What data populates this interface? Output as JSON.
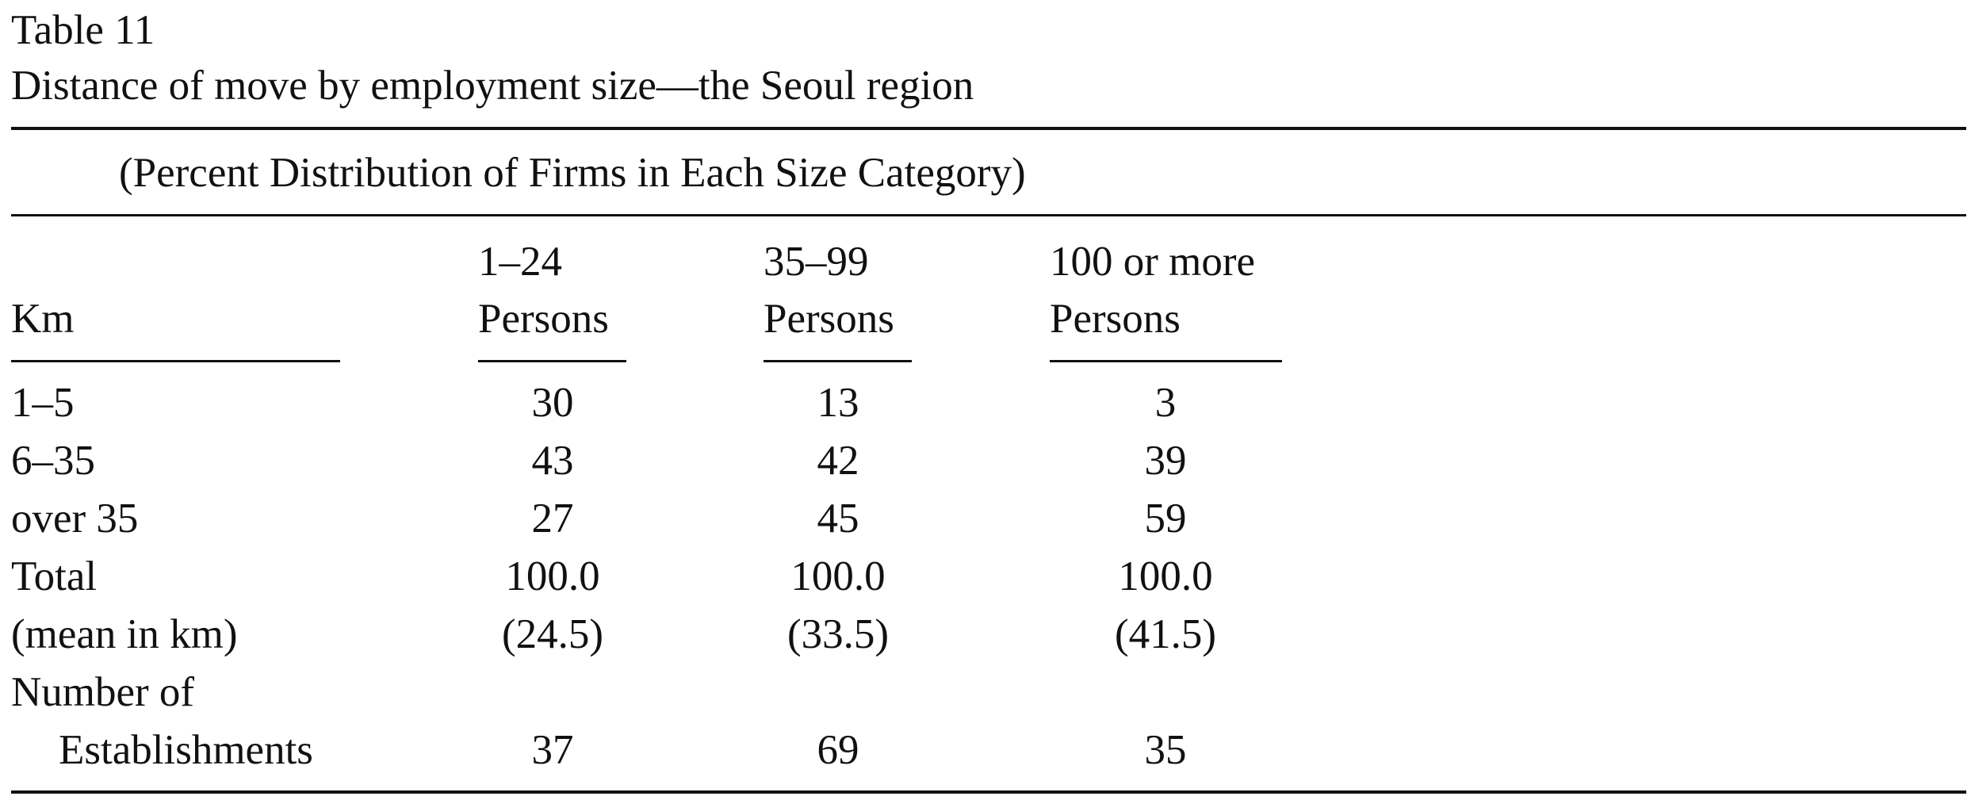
{
  "table": {
    "number": "Table 11",
    "caption": "Distance of move by employment size—the Seoul region",
    "subtitle": "(Percent Distribution of Firms in Each Size Category)",
    "stub_header": "Km",
    "columns": [
      {
        "line1": "1–24",
        "line2": "Persons"
      },
      {
        "line1": "35–99",
        "line2": "Persons"
      },
      {
        "line1": "100 or more",
        "line2": "Persons"
      }
    ],
    "rows": [
      {
        "label": "1–5",
        "values": [
          "30",
          "13",
          "3"
        ]
      },
      {
        "label": "6–35",
        "values": [
          "43",
          "42",
          "39"
        ]
      },
      {
        "label": "over 35",
        "values": [
          "27",
          "45",
          "59"
        ]
      },
      {
        "label": "Total",
        "values": [
          "100.0",
          "100.0",
          "100.0"
        ]
      },
      {
        "label": "(mean in km)",
        "values": [
          "(24.5)",
          "(33.5)",
          "(41.5)"
        ]
      },
      {
        "label": "Number of",
        "label2": "Establishments",
        "values": [
          "37",
          "69",
          "35"
        ]
      }
    ]
  }
}
